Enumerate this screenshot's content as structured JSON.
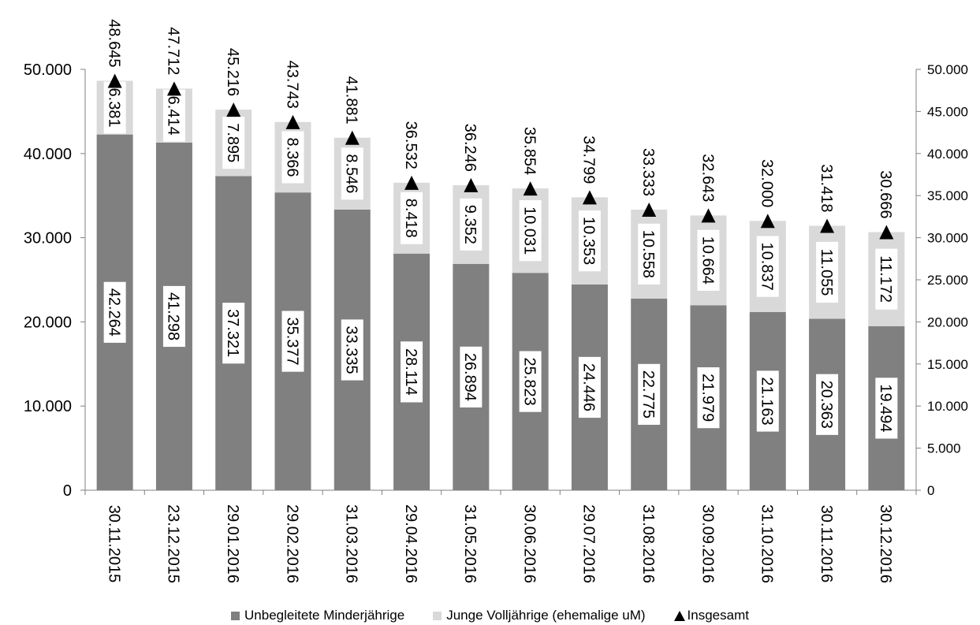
{
  "chart_data": {
    "type": "bar",
    "stacked": true,
    "categories": [
      "30.11.2015",
      "23.12.2015",
      "29.01.2016",
      "29.02.2016",
      "31.03.2016",
      "29.04.2016",
      "31.05.2016",
      "30.06.2016",
      "29.07.2016",
      "31.08.2016",
      "30.09.2016",
      "31.10.2016",
      "30.11.2016",
      "30.12.2016"
    ],
    "series": [
      {
        "name": "Unbegleitete Minderjährige",
        "color": "#808080",
        "values": [
          42264,
          41298,
          37321,
          35377,
          33335,
          28114,
          26894,
          25823,
          24446,
          22775,
          21979,
          21163,
          20363,
          19494
        ]
      },
      {
        "name": "Junge Volljährige (ehemalige uM)",
        "color": "#d9d9d9",
        "values": [
          6381,
          6414,
          7895,
          8366,
          8546,
          8418,
          9352,
          10031,
          10353,
          10558,
          10664,
          10837,
          11055,
          11172
        ]
      },
      {
        "name": "Insgesamt",
        "type": "scatter",
        "marker": "triangle",
        "color": "#000000",
        "values": [
          48645,
          47712,
          45216,
          43743,
          41881,
          36532,
          36246,
          35854,
          34799,
          33333,
          32643,
          32000,
          31418,
          30666
        ]
      }
    ],
    "labels": {
      "minors": [
        "42.264",
        "41.298",
        "37.321",
        "35.377",
        "33.335",
        "28.114",
        "26.894",
        "25.823",
        "24.446",
        "22.775",
        "21.979",
        "21.163",
        "20.363",
        "19.494"
      ],
      "adults": [
        "6.381",
        "6.414",
        "7.895",
        "8.366",
        "8.546",
        "8.418",
        "9.352",
        "10.031",
        "10.353",
        "10.558",
        "10.664",
        "10.837",
        "11.055",
        "11.172"
      ],
      "totals": [
        "48.645",
        "47.712",
        "45.216",
        "43.743",
        "41.881",
        "36.532",
        "36.246",
        "35.854",
        "34.799",
        "33.333",
        "32.643",
        "32.000",
        "31.418",
        "30.666"
      ]
    },
    "y_left": {
      "ylim": [
        0,
        50000
      ],
      "ticks": [
        "0",
        "10.000",
        "20.000",
        "30.000",
        "40.000",
        "50.000"
      ]
    },
    "y_right": {
      "ylim": [
        0,
        50000
      ],
      "ticks": [
        "0",
        "5.000",
        "10.000",
        "15.000",
        "20.000",
        "25.000",
        "30.000",
        "35.000",
        "40.000",
        "45.000",
        "50.000"
      ]
    },
    "legend_position": "bottom",
    "grid": false
  },
  "legend": {
    "minors": "Unbegleitete Minderjährige",
    "adults": "Junge Volljährige (ehemalige uM)",
    "total": "Insgesamt"
  }
}
